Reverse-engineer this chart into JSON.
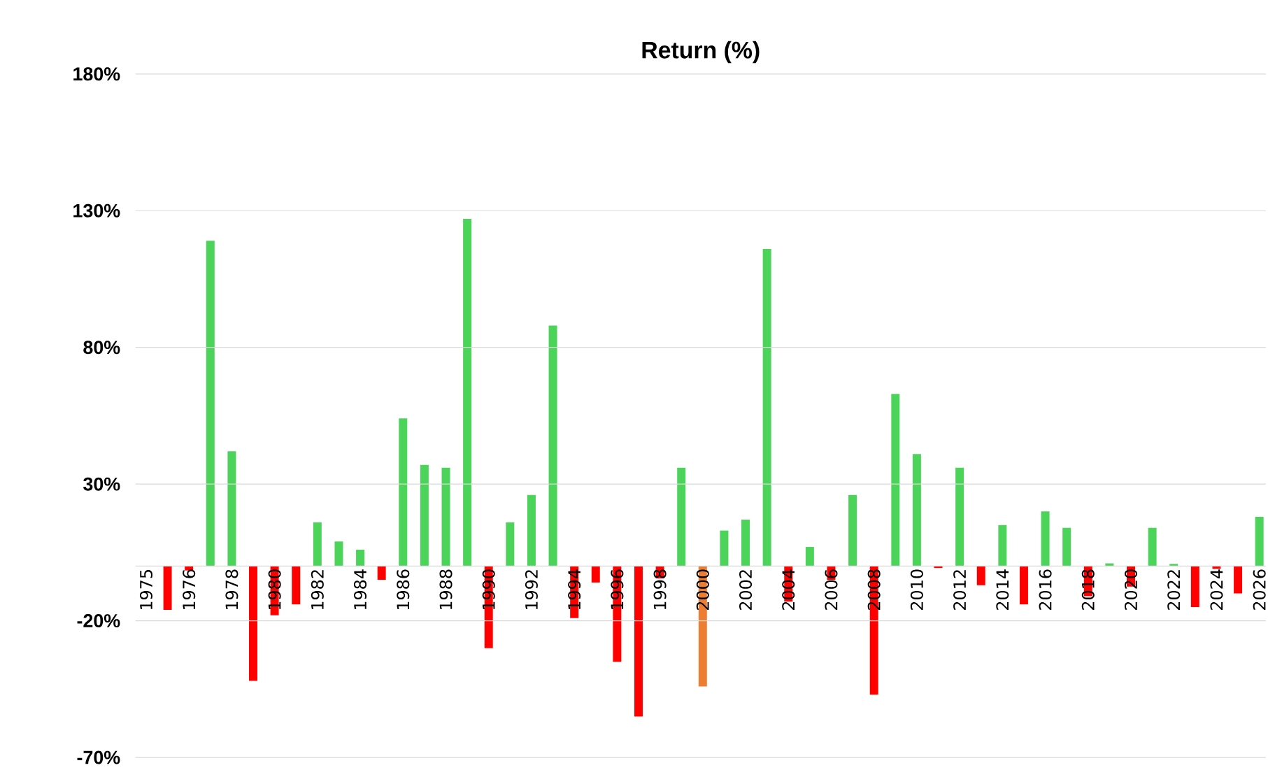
{
  "chart_data": {
    "type": "bar",
    "title": "Return (%)",
    "categories": [
      "1975",
      null,
      "1976",
      null,
      "1978",
      null,
      "1980",
      null,
      "1982",
      null,
      "1984",
      null,
      "1986",
      null,
      "1988",
      null,
      "1990",
      null,
      "1992",
      null,
      "1994",
      null,
      "1996",
      null,
      "1998",
      null,
      "2000",
      null,
      "2002",
      null,
      "2004",
      null,
      "2006",
      null,
      "2008",
      null,
      "2010",
      null,
      "2012",
      null,
      "2014",
      null,
      "2016",
      null,
      "2018",
      null,
      "2020",
      null,
      "2022",
      null,
      "2024",
      null,
      "2026"
    ],
    "values": [
      null,
      -16,
      -1.6,
      119,
      42,
      -42,
      -18,
      -14,
      16,
      9,
      6,
      -5,
      54,
      37,
      36,
      127,
      -30,
      16,
      26,
      88,
      -19,
      -6,
      -35,
      -55,
      -4.5,
      36,
      -44,
      13,
      17,
      116,
      -13,
      7,
      -5,
      26,
      -47,
      63,
      41,
      -0.7,
      36,
      -7,
      15,
      -14,
      20,
      14,
      -11,
      1,
      -7.5,
      14,
      0.8,
      -15,
      -1,
      -10,
      18
    ],
    "colors": [
      "#4cd35a",
      "#ff0000",
      "#ff0000",
      "#4cd35a",
      "#4cd35a",
      "#ff0000",
      "#ff0000",
      "#ff0000",
      "#4cd35a",
      "#4cd35a",
      "#4cd35a",
      "#ff0000",
      "#4cd35a",
      "#4cd35a",
      "#4cd35a",
      "#4cd35a",
      "#ff0000",
      "#4cd35a",
      "#4cd35a",
      "#4cd35a",
      "#ff0000",
      "#ff0000",
      "#ff0000",
      "#ff0000",
      "#ff0000",
      "#4cd35a",
      "#ed7d31",
      "#4cd35a",
      "#4cd35a",
      "#4cd35a",
      "#ff0000",
      "#4cd35a",
      "#ff0000",
      "#4cd35a",
      "#ff0000",
      "#4cd35a",
      "#4cd35a",
      "#ff0000",
      "#4cd35a",
      "#ff0000",
      "#4cd35a",
      "#ff0000",
      "#4cd35a",
      "#4cd35a",
      "#ff0000",
      "#4cd35a",
      "#ff0000",
      "#4cd35a",
      "#4cd35a",
      "#ff0000",
      "#ff0000",
      "#ff0000",
      "#4cd35a"
    ],
    "ylim": [
      -70,
      180
    ],
    "yticks": [
      {
        "value": -70,
        "label": "-70%"
      },
      {
        "value": -20,
        "label": "-20%"
      },
      {
        "value": 30,
        "label": "30%"
      },
      {
        "value": 80,
        "label": "80%"
      },
      {
        "value": 130,
        "label": "130%"
      },
      {
        "value": 180,
        "label": "180%"
      }
    ],
    "grid": "y"
  }
}
